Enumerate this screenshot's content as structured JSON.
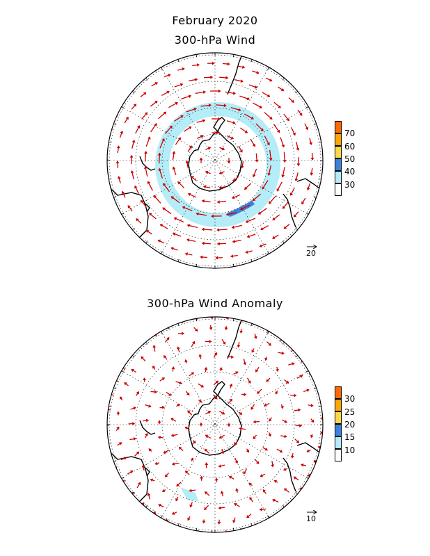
{
  "title": "February 2020",
  "panels": [
    {
      "subtitle": "300-hPa Wind",
      "colorbar": {
        "labels": [
          "70",
          "60",
          "50",
          "40",
          "30"
        ],
        "colors": [
          "#ff6a00",
          "#ffa600",
          "#ffd94a",
          "#3c82dc",
          "#b4ecf7",
          "#ffffff"
        ]
      },
      "reference_vector": "20"
    },
    {
      "subtitle": "300-hPa Wind Anomaly",
      "colorbar": {
        "labels": [
          "30",
          "25",
          "20",
          "15",
          "10"
        ],
        "colors": [
          "#ff6a00",
          "#ffa600",
          "#ffd94a",
          "#3c82dc",
          "#b4ecf7",
          "#ffffff"
        ]
      },
      "reference_vector": "10"
    }
  ],
  "colors": {
    "vector": "#cc0000",
    "coast": "#000000",
    "shade_light": "#b4ecf7",
    "shade_mid": "#3c82dc"
  }
}
